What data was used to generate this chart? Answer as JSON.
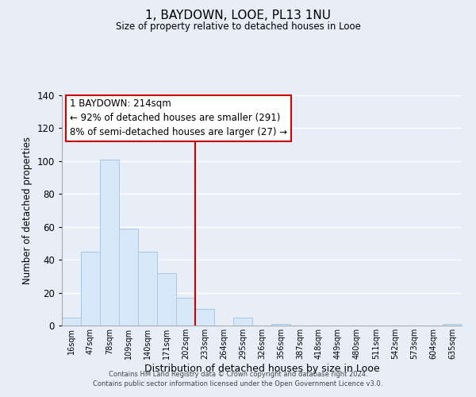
{
  "title": "1, BAYDOWN, LOOE, PL13 1NU",
  "subtitle": "Size of property relative to detached houses in Looe",
  "xlabel": "Distribution of detached houses by size in Looe",
  "ylabel": "Number of detached properties",
  "bin_labels": [
    "16sqm",
    "47sqm",
    "78sqm",
    "109sqm",
    "140sqm",
    "171sqm",
    "202sqm",
    "233sqm",
    "264sqm",
    "295sqm",
    "326sqm",
    "356sqm",
    "387sqm",
    "418sqm",
    "449sqm",
    "480sqm",
    "511sqm",
    "542sqm",
    "573sqm",
    "604sqm",
    "635sqm"
  ],
  "bar_heights": [
    5,
    45,
    101,
    59,
    45,
    32,
    17,
    10,
    0,
    5,
    0,
    1,
    0,
    0,
    0,
    0,
    0,
    0,
    0,
    0,
    1
  ],
  "bar_color": "#d6e8f7",
  "bar_edge_color": "#a8c8e8",
  "vline_x": 6.5,
  "vline_color": "#cc0000",
  "ylim": [
    0,
    140
  ],
  "yticks": [
    0,
    20,
    40,
    60,
    80,
    100,
    120,
    140
  ],
  "annotation_title": "1 BAYDOWN: 214sqm",
  "annotation_line1": "← 92% of detached houses are smaller (291)",
  "annotation_line2": "8% of semi-detached houses are larger (27) →",
  "annotation_box_facecolor": "#ffffff",
  "annotation_box_edge": "#cc0000",
  "footer_line1": "Contains HM Land Registry data © Crown copyright and database right 2024.",
  "footer_line2": "Contains public sector information licensed under the Open Government Licence v3.0.",
  "bg_color": "#e8eef8",
  "plot_bg_color": "#e8eef8",
  "grid_color": "#ffffff",
  "spine_color": "#aaaaaa"
}
